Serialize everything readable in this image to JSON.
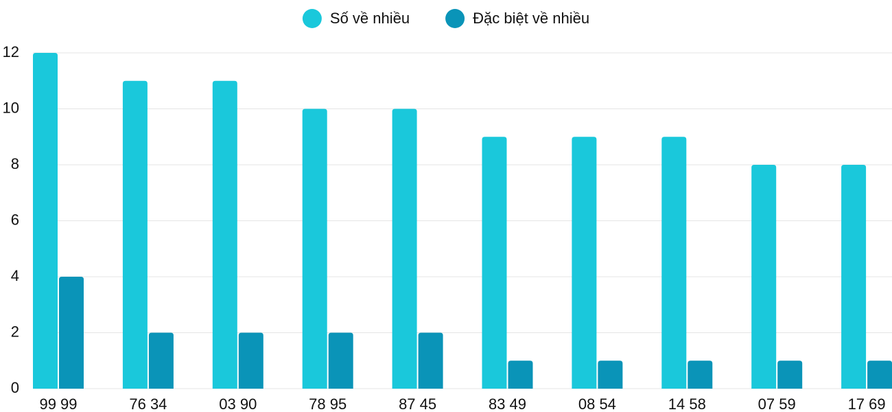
{
  "chart_data": {
    "type": "bar",
    "categories": [
      "99 99",
      "76 34",
      "03 90",
      "78 95",
      "87 45",
      "83 49",
      "08 54",
      "14 58",
      "07 59",
      "17 69"
    ],
    "series": [
      {
        "name": "Số về nhiều",
        "color": "#1ac8db",
        "values": [
          12,
          11,
          11,
          10,
          10,
          9,
          9,
          9,
          8,
          8
        ]
      },
      {
        "name": "Đặc biệt về nhiều",
        "color": "#0a94b8",
        "values": [
          4,
          2,
          2,
          2,
          2,
          1,
          1,
          1,
          1,
          1
        ]
      }
    ],
    "ylim": [
      0,
      12
    ],
    "yticks": [
      0,
      2,
      4,
      6,
      8,
      10,
      12
    ],
    "grid": true,
    "legend": "top"
  }
}
